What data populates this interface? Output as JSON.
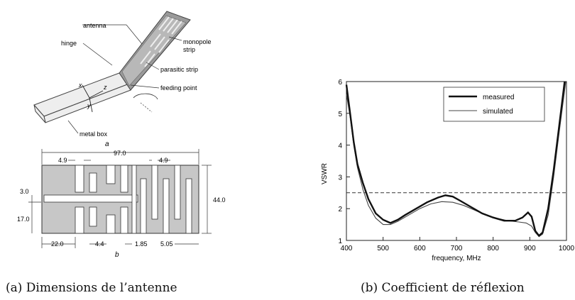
{
  "figure_a": {
    "labels": {
      "antenna": "antenna",
      "hinge": "hinge",
      "monopole": "monopole",
      "strip": "strip",
      "parasitic": "parasitic strip",
      "feeding": "feeding point",
      "metal_box": "metal box",
      "axis_x": "x",
      "axis_y": "y",
      "axis_z": "z",
      "sub_a": "a",
      "sub_b": "b"
    },
    "dims": {
      "total_width": "97.0",
      "left_gap": "4.9",
      "right_gap": "4.9",
      "height": "44.0",
      "d3": "3.0",
      "d17": "17.0",
      "d22": "22.0",
      "d44": "4.4",
      "d185": "1.85",
      "d505": "5.05"
    }
  },
  "chart_data": {
    "type": "line",
    "xlabel": "frequency, MHz",
    "ylabel": "VSWR",
    "xlim": [
      400,
      1000
    ],
    "ylim": [
      1,
      6
    ],
    "x_ticks": [
      "400",
      "500",
      "600",
      "700",
      "800",
      "900",
      "1000"
    ],
    "y_ticks": [
      "1",
      "2",
      "3",
      "4",
      "5",
      "6"
    ],
    "reference_line": 2.5,
    "legend_position": "top-right",
    "series": [
      {
        "name": "measured",
        "style": "thick",
        "points": [
          [
            400,
            5.9
          ],
          [
            410,
            5.0
          ],
          [
            420,
            4.1
          ],
          [
            430,
            3.4
          ],
          [
            445,
            2.8
          ],
          [
            460,
            2.3
          ],
          [
            480,
            1.85
          ],
          [
            500,
            1.65
          ],
          [
            520,
            1.55
          ],
          [
            540,
            1.65
          ],
          [
            560,
            1.8
          ],
          [
            590,
            2.0
          ],
          [
            620,
            2.2
          ],
          [
            650,
            2.35
          ],
          [
            670,
            2.42
          ],
          [
            690,
            2.38
          ],
          [
            710,
            2.25
          ],
          [
            740,
            2.05
          ],
          [
            770,
            1.85
          ],
          [
            800,
            1.72
          ],
          [
            830,
            1.62
          ],
          [
            860,
            1.62
          ],
          [
            880,
            1.72
          ],
          [
            895,
            1.88
          ],
          [
            905,
            1.75
          ],
          [
            915,
            1.3
          ],
          [
            925,
            1.15
          ],
          [
            935,
            1.25
          ],
          [
            950,
            2.0
          ],
          [
            965,
            3.2
          ],
          [
            980,
            4.6
          ],
          [
            995,
            6.0
          ]
        ]
      },
      {
        "name": "simulated",
        "style": "thin",
        "points": [
          [
            400,
            5.6
          ],
          [
            410,
            4.9
          ],
          [
            420,
            4.0
          ],
          [
            430,
            3.3
          ],
          [
            445,
            2.6
          ],
          [
            460,
            2.1
          ],
          [
            480,
            1.7
          ],
          [
            500,
            1.5
          ],
          [
            520,
            1.5
          ],
          [
            540,
            1.6
          ],
          [
            570,
            1.8
          ],
          [
            600,
            2.0
          ],
          [
            630,
            2.15
          ],
          [
            660,
            2.22
          ],
          [
            690,
            2.2
          ],
          [
            720,
            2.1
          ],
          [
            750,
            1.95
          ],
          [
            780,
            1.8
          ],
          [
            810,
            1.7
          ],
          [
            840,
            1.62
          ],
          [
            870,
            1.58
          ],
          [
            890,
            1.55
          ],
          [
            905,
            1.45
          ],
          [
            915,
            1.25
          ],
          [
            925,
            1.12
          ],
          [
            935,
            1.2
          ],
          [
            950,
            1.8
          ],
          [
            965,
            3.0
          ],
          [
            980,
            4.4
          ],
          [
            998,
            6.0
          ]
        ]
      }
    ]
  },
  "captions": {
    "a": "(a)  Dimensions de l’antenne",
    "b": "(b)  Coefficient de réflexion"
  }
}
